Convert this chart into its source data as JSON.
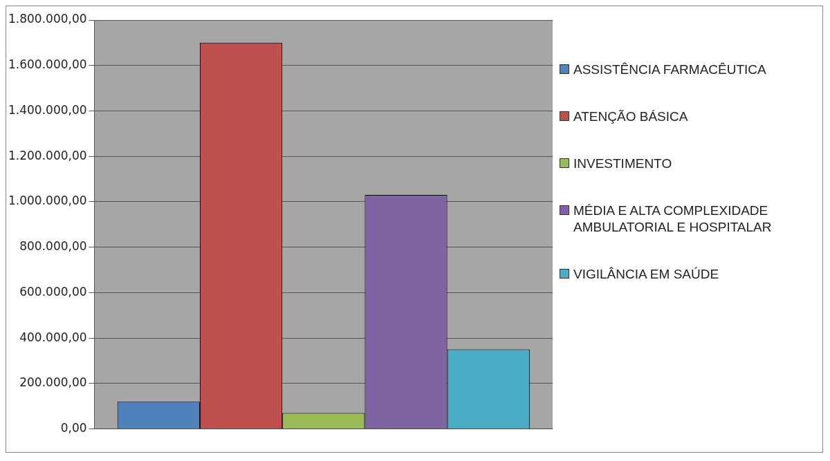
{
  "chart_data": {
    "type": "bar",
    "categories": [
      null
    ],
    "series": [
      {
        "name": "ASSISTÊNCIA FARMACÊUTICA",
        "color": "#4f81bd",
        "values": [
          120000
        ]
      },
      {
        "name": "ATENÇÃO BÁSICA",
        "color": "#c0504d",
        "values": [
          1700000
        ]
      },
      {
        "name": "INVESTIMENTO",
        "color": "#9bbb59",
        "values": [
          70000
        ]
      },
      {
        "name": "MÉDIA E ALTA COMPLEXIDADE AMBULATORIAL E HOSPITALAR",
        "color": "#8064a2",
        "values": [
          1030000
        ]
      },
      {
        "name": "VIGILÂNCIA EM SAÚDE",
        "color": "#4bacc6",
        "values": [
          350000
        ]
      }
    ],
    "ylim": [
      0,
      1800000
    ],
    "yticks": [
      {
        "value": 0,
        "label": "0,00"
      },
      {
        "value": 200000,
        "label": "200.000,00"
      },
      {
        "value": 400000,
        "label": "400.000,00"
      },
      {
        "value": 600000,
        "label": "600.000,00"
      },
      {
        "value": 800000,
        "label": "800.000,00"
      },
      {
        "value": 1000000,
        "label": "1.000.000,00"
      },
      {
        "value": 1200000,
        "label": "1.200.000,00"
      },
      {
        "value": 1400000,
        "label": "1.400.000,00"
      },
      {
        "value": 1600000,
        "label": "1.600.000,00"
      },
      {
        "value": 1800000,
        "label": "1.800.000,00"
      }
    ],
    "grid": "y",
    "legend": "right"
  }
}
